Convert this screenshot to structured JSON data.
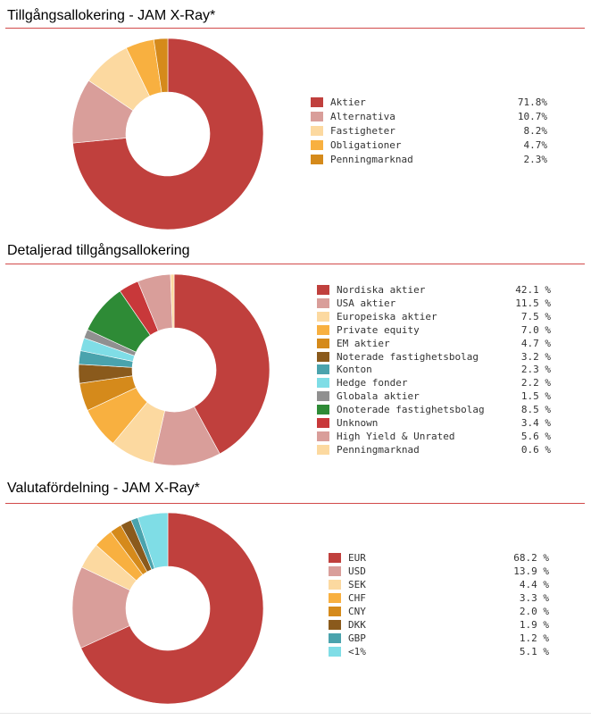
{
  "sections": [
    {
      "title": "Tillgångsallokering - JAM X-Ray*"
    },
    {
      "title": "Detaljerad tillgångsallokering"
    },
    {
      "title": "Valutafördelning - JAM X-Ray*"
    }
  ],
  "chart_data": [
    {
      "type": "pie",
      "title": "Tillgångsallokering - JAM X-Ray*",
      "categories": [
        "Aktier",
        "Alternativa",
        "Fastigheter",
        "Obligationer",
        "Penningmarknad"
      ],
      "values": [
        71.8,
        10.7,
        8.2,
        4.7,
        2.3
      ],
      "value_labels": [
        "71.8%",
        "10.7%",
        "8.2%",
        "4.7%",
        "2.3%"
      ],
      "colors": [
        "#c0403d",
        "#d99e9a",
        "#fcd9a0",
        "#f8b040",
        "#d58a1b"
      ],
      "legend_position": "right"
    },
    {
      "type": "pie",
      "title": "Detaljerad tillgångsallokering",
      "categories": [
        "Nordiska aktier",
        "USA aktier",
        "Europeiska aktier",
        "Private equity",
        "EM aktier",
        "Noterade fastighetsbolag",
        "Konton",
        "Hedge fonder",
        "Globala aktier",
        "Onoterade fastighetsbolag",
        "Unknown",
        "High Yield & Unrated",
        "Penningmarknad"
      ],
      "values": [
        42.1,
        11.5,
        7.5,
        7.0,
        4.7,
        3.2,
        2.3,
        2.2,
        1.5,
        8.5,
        3.4,
        5.6,
        0.6
      ],
      "value_labels": [
        "42.1 %",
        "11.5 %",
        "7.5 %",
        "7.0 %",
        "4.7 %",
        "3.2 %",
        "2.3 %",
        "2.2 %",
        "1.5 %",
        "8.5 %",
        "3.4 %",
        "5.6 %",
        "0.6 %"
      ],
      "colors": [
        "#c0403d",
        "#d99e9a",
        "#fcd9a0",
        "#f8b040",
        "#d58a1b",
        "#8a5a1c",
        "#4aa3ad",
        "#7fdde6",
        "#909090",
        "#2e8b36",
        "#c8383a",
        "#d99e9a",
        "#fcd9a0"
      ],
      "legend_position": "right"
    },
    {
      "type": "pie",
      "title": "Valutafördelning - JAM X-Ray*",
      "categories": [
        "EUR",
        "USD",
        "SEK",
        "CHF",
        "CNY",
        "DKK",
        "GBP",
        "<1%"
      ],
      "values": [
        68.2,
        13.9,
        4.4,
        3.3,
        2.0,
        1.9,
        1.2,
        5.1
      ],
      "value_labels": [
        "68.2 %",
        "13.9 %",
        "4.4 %",
        "3.3 %",
        "2.0 %",
        "1.9 %",
        "1.2 %",
        "5.1 %"
      ],
      "colors": [
        "#c0403d",
        "#d99e9a",
        "#fcd9a0",
        "#f8b040",
        "#d58a1b",
        "#8a5a1c",
        "#4aa3ad",
        "#7fdde6"
      ],
      "legend_position": "right"
    }
  ]
}
